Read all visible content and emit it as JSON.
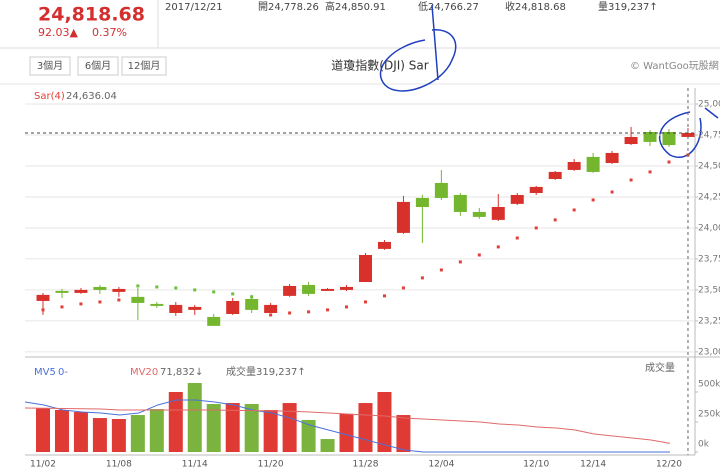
{
  "header": {
    "price": "24,818.68",
    "change": "92.03▲",
    "change_pct": "0.37%",
    "date": "2017/12/21",
    "open": "開24,778.26",
    "high": "高24,850.91",
    "low": "低24,766.27",
    "close": "收24,818.68",
    "volume": "量319,237↑"
  },
  "toolbar": {
    "buttons": [
      "3個月",
      "6個月",
      "12個月"
    ],
    "title": "道瓊指數(DJI) Sar",
    "credit": "© WantGoo玩股網"
  },
  "chart_data": [
    {
      "type": "candlestick",
      "open": [
        23411,
        23492,
        23476,
        23524,
        23484,
        23444,
        23387,
        23314,
        23339,
        23282,
        23306,
        23427,
        23314,
        23452,
        23540,
        23492,
        23500,
        23564,
        23831,
        23960,
        24242,
        24363,
        24266,
        24129,
        24065,
        24194,
        24282,
        24395,
        24468,
        24573,
        24524,
        24677,
        24774,
        24774,
        24734
      ],
      "high": [
        23476,
        23508,
        23516,
        23540,
        23524,
        23516,
        23403,
        23403,
        23379,
        23306,
        23435,
        23460,
        23395,
        23548,
        23564,
        23516,
        23540,
        23798,
        23903,
        24258,
        24266,
        24468,
        24282,
        24161,
        24274,
        24282,
        24339,
        24460,
        24556,
        24605,
        24621,
        24815,
        24790,
        24798,
        24806
      ],
      "low": [
        23299,
        23435,
        23468,
        23468,
        23444,
        23258,
        23355,
        23290,
        23298,
        23210,
        23298,
        23314,
        23314,
        23444,
        23452,
        23492,
        23492,
        23564,
        23823,
        23952,
        23879,
        24226,
        24097,
        24073,
        24056,
        24185,
        24266,
        24387,
        24460,
        24444,
        24516,
        24669,
        24661,
        24653,
        24726
      ],
      "close": [
        23460,
        23476,
        23500,
        23500,
        23508,
        23395,
        23371,
        23379,
        23363,
        23210,
        23411,
        23339,
        23379,
        23532,
        23468,
        23508,
        23524,
        23782,
        23887,
        24210,
        24169,
        24242,
        24129,
        24089,
        24169,
        24266,
        24331,
        24452,
        24532,
        24452,
        24605,
        24734,
        24694,
        24669,
        24766
      ],
      "up_color": "#d8312b",
      "down_color": "#74b62e",
      "ylim": [
        22975,
        25129
      ],
      "yticks": [
        {
          "value": 23000,
          "label": "23,000"
        },
        {
          "value": 23250,
          "label": "23,250"
        },
        {
          "value": 23500,
          "label": "23,500"
        },
        {
          "value": 23750,
          "label": "23,750"
        },
        {
          "value": 24000,
          "label": "24,000"
        },
        {
          "value": 24250,
          "label": "24,250"
        },
        {
          "value": 24500,
          "label": "24,500"
        },
        {
          "value": 24750,
          "label": "24,750"
        },
        {
          "value": 25000,
          "label": "25,000"
        }
      ],
      "grid": true,
      "series": [
        {
          "name": "Sar(4)",
          "legend_value": "24,636.04",
          "color_below": "#e0403a",
          "color_above": "#6cbf3a",
          "values": [
            23339,
            23363,
            23387,
            23403,
            23419,
            23532,
            23524,
            23516,
            23500,
            23484,
            23468,
            23444,
            23298,
            23314,
            23323,
            23339,
            23363,
            23403,
            23452,
            23516,
            23597,
            23661,
            23726,
            23782,
            23847,
            23919,
            24000,
            24065,
            24145,
            24226,
            24290,
            24387,
            24452,
            24532,
            24589
          ]
        }
      ]
    },
    {
      "type": "bar",
      "categories": [
        "11/02",
        null,
        null,
        null,
        "11/08",
        null,
        null,
        null,
        "11/14",
        null,
        null,
        null,
        "11/20",
        null,
        null,
        null,
        null,
        "11/28",
        null,
        null,
        null,
        "12/04",
        null,
        null,
        null,
        null,
        "12/10",
        null,
        null,
        "12/14",
        null,
        null,
        null,
        "12/20",
        null
      ],
      "ylim": [
        0,
        750000
      ],
      "yticks": [
        {
          "value": 0,
          "label": "0k"
        },
        {
          "value": 250000,
          "label": "250k"
        },
        {
          "value": 500000,
          "label": "500k"
        }
      ],
      "series": [
        {
          "name": "成交量",
          "legend": "成交量319,237↑",
          "values": [
            367000,
            350000,
            333000,
            283000,
            275000,
            308000,
            358000,
            500000,
            575000,
            400000,
            408000,
            400000,
            350000,
            408000,
            267000,
            108000,
            317000,
            408000,
            500000,
            308000,
            null,
            null,
            null,
            null,
            null,
            null,
            null,
            null,
            null,
            null,
            null,
            null,
            null,
            null,
            null
          ],
          "colors": [
            "#e03a35",
            "#e03a35",
            "#e03a35",
            "#e03a35",
            "#e03a35",
            "#7ab33e",
            "#7ab33e",
            "#e03a35",
            "#7ab33e",
            "#7ab33e",
            "#e03a35",
            "#7ab33e",
            "#e03a35",
            "#e03a35",
            "#7ab33e",
            "#7ab33e",
            "#e03a35",
            "#e03a35",
            "#e03a35",
            "#e03a35",
            null,
            null,
            null,
            null,
            null,
            null,
            null,
            null,
            null,
            null,
            null,
            null,
            null,
            null,
            null
          ]
        },
        {
          "name": "MV5",
          "legend_value": "0-",
          "color": "#4a72d8",
          "values": [
            417000,
            392000,
            350000,
            333000,
            325000,
            308000,
            325000,
            392000,
            433000,
            433000,
            417000,
            392000,
            350000,
            325000,
            283000,
            225000,
            183000,
            142000,
            100000,
            58000,
            17000,
            0,
            0,
            0,
            0,
            0,
            0,
            0,
            0,
            0,
            0,
            0,
            0,
            0,
            0
          ]
        },
        {
          "name": "MV20",
          "legend_value": "71,832↓",
          "color": "#e06a6a",
          "values": [
            367000,
            365000,
            362000,
            360000,
            358000,
            350000,
            350000,
            350000,
            350000,
            350000,
            350000,
            347000,
            345000,
            343000,
            340000,
            333000,
            325000,
            317000,
            308000,
            300000,
            283000,
            275000,
            267000,
            258000,
            250000,
            233000,
            225000,
            208000,
            200000,
            183000,
            150000,
            133000,
            117000,
            100000,
            72000
          ]
        }
      ]
    }
  ]
}
